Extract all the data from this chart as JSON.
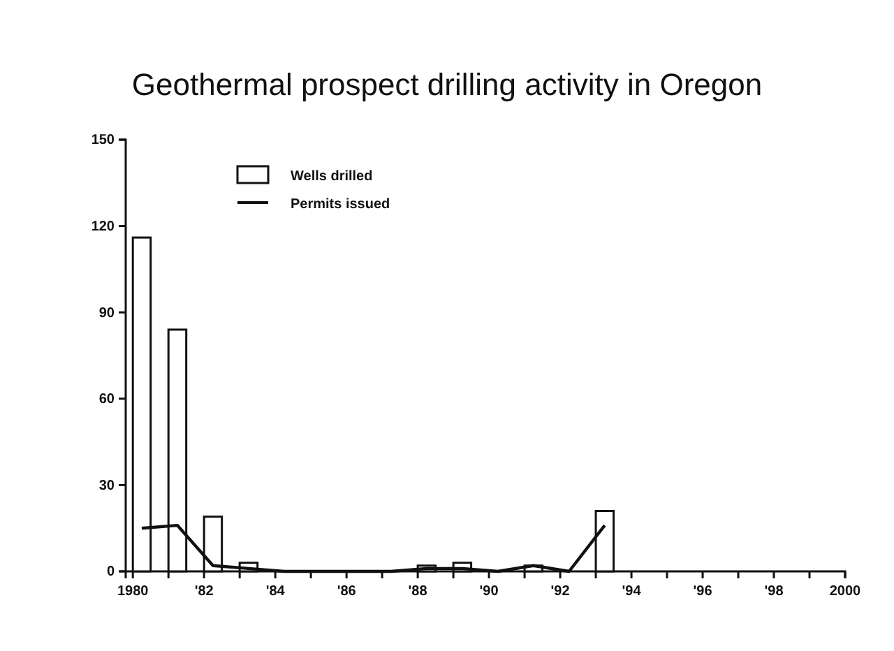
{
  "chart_data": {
    "type": "bar",
    "title": "Geothermal prospect drilling activity in Oregon",
    "x": [
      1980.25,
      1981.25,
      1982.25,
      1983.25,
      1984.25,
      1985.25,
      1986.25,
      1987.25,
      1988.25,
      1989.25,
      1990.25,
      1991.25,
      1992.25,
      1993.25
    ],
    "series": [
      {
        "name": "Wells drilled",
        "color": "#ffffff",
        "values": [
          116,
          84,
          19,
          3,
          0,
          0,
          0,
          0,
          2,
          3,
          0,
          2,
          0,
          21
        ]
      },
      {
        "name": "Permits issued",
        "type": "line",
        "color": "#111111",
        "values": [
          15,
          16,
          2,
          1,
          0,
          0,
          0,
          0,
          1,
          1,
          0,
          2,
          0,
          16
        ]
      }
    ],
    "xlim": [
      1979.8,
      2000
    ],
    "xticks": [
      {
        "value": 1980,
        "label": "1980"
      },
      {
        "value": 1981,
        "label": null
      },
      {
        "value": 1982,
        "label": "'82"
      },
      {
        "value": 1983,
        "label": null
      },
      {
        "value": 1984,
        "label": "'84"
      },
      {
        "value": 1985,
        "label": null
      },
      {
        "value": 1986,
        "label": "'86"
      },
      {
        "value": 1987,
        "label": null
      },
      {
        "value": 1988,
        "label": "'88"
      },
      {
        "value": 1989,
        "label": null
      },
      {
        "value": 1990,
        "label": "'90"
      },
      {
        "value": 1991,
        "label": null
      },
      {
        "value": 1992,
        "label": "'92"
      },
      {
        "value": 1993,
        "label": null
      },
      {
        "value": 1994,
        "label": "'94"
      },
      {
        "value": 1995,
        "label": null
      },
      {
        "value": 1996,
        "label": "'96"
      },
      {
        "value": 1997,
        "label": null
      },
      {
        "value": 1998,
        "label": "'98"
      },
      {
        "value": 1999,
        "label": null
      },
      {
        "value": 2000,
        "label": "2000"
      }
    ],
    "ylim": [
      0,
      150
    ],
    "yticks": [
      0,
      30,
      60,
      90,
      120,
      150
    ],
    "legend": "top left",
    "grid": false
  }
}
